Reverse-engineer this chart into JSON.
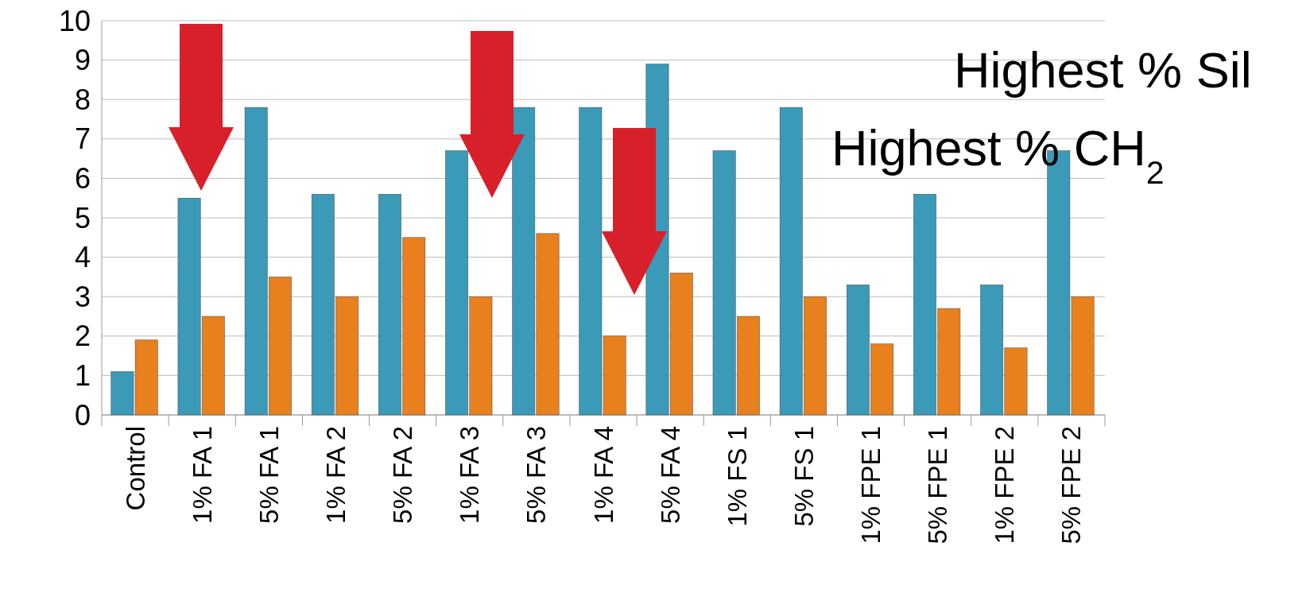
{
  "chart_data": {
    "type": "bar",
    "categories": [
      "Control",
      "1% FA 1",
      "5% FA 1",
      "1% FA 2",
      "5% FA 2",
      "1% FA 3",
      "5% FA 3",
      "1% FA 4",
      "5% FA 4",
      "1% FS 1",
      "5% FS 1",
      "1% FPE 1",
      "5% FPE 1",
      "1% FPE 2",
      "5% FPE 2"
    ],
    "series": [
      {
        "color": "#3a9ab8",
        "values": [
          1.1,
          5.5,
          7.8,
          5.6,
          5.6,
          6.7,
          7.8,
          7.8,
          8.9,
          6.7,
          7.8,
          3.3,
          5.6,
          3.3,
          6.7
        ]
      },
      {
        "color": "#e8801e",
        "values": [
          1.9,
          2.5,
          3.5,
          3.0,
          4.5,
          3.0,
          4.6,
          2.0,
          3.6,
          2.5,
          3.0,
          1.8,
          2.7,
          1.7,
          3.0
        ]
      }
    ],
    "ylim": [
      0,
      10
    ],
    "yticks": [
      0,
      1,
      2,
      3,
      4,
      5,
      6,
      7,
      8,
      9,
      10
    ],
    "grid": "y",
    "annotations": [
      "Highest % Sil",
      "Highest % CH$_{2}$"
    ]
  }
}
